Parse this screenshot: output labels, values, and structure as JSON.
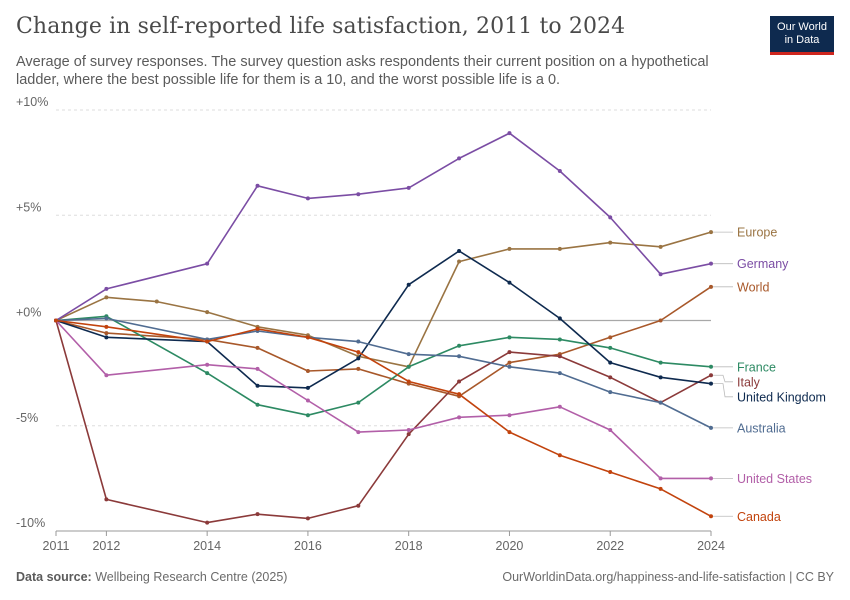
{
  "header": {
    "title": "Change in self-reported life satisfaction, 2011 to 2024",
    "subtitle": "Average of survey responses. The survey question asks respondents their current position on a hypothetical ladder, where the best possible life for them is a 10, and the worst possible life is a 0.",
    "logo_line1": "Our World",
    "logo_line2": "in Data"
  },
  "footer": {
    "source_label": "Data source:",
    "source_value": "Wellbeing Research Centre (2025)",
    "credit": "OurWorldinData.org/happiness-and-life-satisfaction | CC BY"
  },
  "chart_data": {
    "type": "line",
    "xlim": [
      2011,
      2024
    ],
    "ylim": [
      -10,
      10
    ],
    "x_ticks": [
      2011,
      2012,
      2014,
      2016,
      2018,
      2020,
      2022,
      2024
    ],
    "y_ticks": [
      {
        "value": 10,
        "label": "+10%"
      },
      {
        "value": 5,
        "label": "+5%"
      },
      {
        "value": 0,
        "label": "+0%"
      },
      {
        "value": -5,
        "label": "-5%"
      },
      {
        "value": -10,
        "label": "-10%"
      }
    ],
    "series": [
      {
        "name": "Europe",
        "color": "#9a7443",
        "label_value": 4.2,
        "points": [
          [
            2011,
            0
          ],
          [
            2012,
            1.1
          ],
          [
            2013,
            0.9
          ],
          [
            2014,
            0.4
          ],
          [
            2015,
            -0.3
          ],
          [
            2016,
            -0.7
          ],
          [
            2017,
            -1.7
          ],
          [
            2018,
            -2.2
          ],
          [
            2019,
            2.8
          ],
          [
            2020,
            3.4
          ],
          [
            2021,
            3.4
          ],
          [
            2022,
            3.7
          ],
          [
            2023,
            3.5
          ],
          [
            2024,
            4.2
          ]
        ]
      },
      {
        "name": "Germany",
        "color": "#7b4da4",
        "label_value": 2.7,
        "points": [
          [
            2011,
            0
          ],
          [
            2012,
            1.5
          ],
          [
            2014,
            2.7
          ],
          [
            2015,
            6.4
          ],
          [
            2016,
            5.8
          ],
          [
            2017,
            6.0
          ],
          [
            2018,
            6.3
          ],
          [
            2019,
            7.7
          ],
          [
            2020,
            8.9
          ],
          [
            2021,
            7.1
          ],
          [
            2022,
            4.9
          ],
          [
            2023,
            2.2
          ],
          [
            2024,
            2.7
          ]
        ]
      },
      {
        "name": "World",
        "color": "#a8582a",
        "label_value": 1.6,
        "points": [
          [
            2011,
            0
          ],
          [
            2012,
            -0.6
          ],
          [
            2014,
            -0.9
          ],
          [
            2015,
            -1.3
          ],
          [
            2016,
            -2.4
          ],
          [
            2017,
            -2.3
          ],
          [
            2018,
            -3.0
          ],
          [
            2019,
            -3.6
          ],
          [
            2020,
            -2.0
          ],
          [
            2021,
            -1.6
          ],
          [
            2022,
            -0.8
          ],
          [
            2023,
            0.0
          ],
          [
            2024,
            1.6
          ]
        ]
      },
      {
        "name": "France",
        "color": "#2d8a63",
        "label_value": -2.2,
        "points": [
          [
            2011,
            0
          ],
          [
            2012,
            0.2
          ],
          [
            2014,
            -2.5
          ],
          [
            2015,
            -4.0
          ],
          [
            2016,
            -4.5
          ],
          [
            2017,
            -3.9
          ],
          [
            2018,
            -2.2
          ],
          [
            2019,
            -1.2
          ],
          [
            2020,
            -0.8
          ],
          [
            2021,
            -0.9
          ],
          [
            2022,
            -1.3
          ],
          [
            2023,
            -2.0
          ],
          [
            2024,
            -2.2
          ]
        ]
      },
      {
        "name": "Italy",
        "color": "#8b3a3a",
        "label_value": -2.6,
        "points": [
          [
            2011,
            0
          ],
          [
            2012,
            -8.5
          ],
          [
            2014,
            -9.6
          ],
          [
            2015,
            -9.2
          ],
          [
            2016,
            -9.4
          ],
          [
            2017,
            -8.8
          ],
          [
            2018,
            -5.4
          ],
          [
            2019,
            -2.9
          ],
          [
            2020,
            -1.5
          ],
          [
            2021,
            -1.7
          ],
          [
            2022,
            -2.7
          ],
          [
            2023,
            -3.9
          ],
          [
            2024,
            -2.6
          ]
        ]
      },
      {
        "name": "United Kingdom",
        "color": "#0e2a4f",
        "label_value": -3.0,
        "points": [
          [
            2011,
            0
          ],
          [
            2012,
            -0.8
          ],
          [
            2014,
            -1.0
          ],
          [
            2015,
            -3.1
          ],
          [
            2016,
            -3.2
          ],
          [
            2017,
            -1.8
          ],
          [
            2018,
            1.7
          ],
          [
            2019,
            3.3
          ],
          [
            2020,
            1.8
          ],
          [
            2021,
            0.1
          ],
          [
            2022,
            -2.0
          ],
          [
            2023,
            -2.7
          ],
          [
            2024,
            -3.0
          ]
        ]
      },
      {
        "name": "Australia",
        "color": "#506c91",
        "label_value": -5.1,
        "points": [
          [
            2011,
            0
          ],
          [
            2012,
            0.1
          ],
          [
            2014,
            -0.9
          ],
          [
            2015,
            -0.5
          ],
          [
            2016,
            -0.8
          ],
          [
            2017,
            -1.0
          ],
          [
            2018,
            -1.6
          ],
          [
            2019,
            -1.7
          ],
          [
            2020,
            -2.2
          ],
          [
            2021,
            -2.5
          ],
          [
            2022,
            -3.4
          ],
          [
            2023,
            -3.9
          ],
          [
            2024,
            -5.1
          ]
        ]
      },
      {
        "name": "United States",
        "color": "#b25fa8",
        "label_value": -7.5,
        "points": [
          [
            2011,
            0
          ],
          [
            2012,
            -2.6
          ],
          [
            2014,
            -2.1
          ],
          [
            2015,
            -2.3
          ],
          [
            2016,
            -3.8
          ],
          [
            2017,
            -5.3
          ],
          [
            2018,
            -5.2
          ],
          [
            2019,
            -4.6
          ],
          [
            2020,
            -4.5
          ],
          [
            2021,
            -4.1
          ],
          [
            2022,
            -5.2
          ],
          [
            2023,
            -7.5
          ],
          [
            2024,
            -7.5
          ]
        ]
      },
      {
        "name": "Canada",
        "color": "#c2430d",
        "label_value": -9.3,
        "points": [
          [
            2011,
            0
          ],
          [
            2012,
            -0.3
          ],
          [
            2014,
            -1.0
          ],
          [
            2015,
            -0.4
          ],
          [
            2016,
            -0.8
          ],
          [
            2017,
            -1.5
          ],
          [
            2018,
            -2.9
          ],
          [
            2019,
            -3.5
          ],
          [
            2020,
            -5.3
          ],
          [
            2021,
            -6.4
          ],
          [
            2022,
            -7.2
          ],
          [
            2023,
            -8.0
          ],
          [
            2024,
            -9.3
          ]
        ]
      }
    ]
  }
}
